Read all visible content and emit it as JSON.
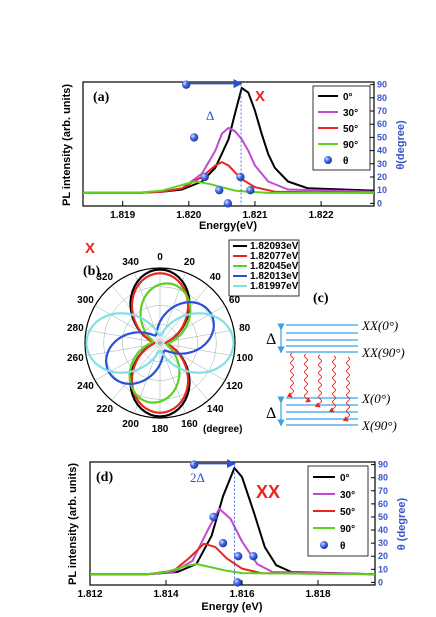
{
  "panel_a": {
    "letter": "(a)",
    "label": "X",
    "label_color": "#e8261d",
    "ylabel": "PL intensity (arb. units)",
    "xlabel": "Energy(eV)",
    "y2label": "θ(degree)",
    "delta": "Δ",
    "legend": [
      "0°",
      "30°",
      "50°",
      "90°",
      "θ"
    ],
    "xticks": [
      "1.819",
      "1.820",
      "1.821",
      "1.822"
    ],
    "y2ticks": [
      "0",
      "10",
      "20",
      "30",
      "40",
      "50",
      "60",
      "70",
      "80",
      "90"
    ]
  },
  "panel_b": {
    "letter": "(b)",
    "label": "X",
    "label_color": "#e8261d",
    "unit": "(degree)",
    "angle_labels": [
      "0",
      "20",
      "40",
      "60",
      "80",
      "100",
      "120",
      "140",
      "160",
      "180",
      "200",
      "220",
      "240",
      "260",
      "280",
      "300",
      "320",
      "340"
    ],
    "legend": [
      "1.82093eV",
      "1.82077eV",
      "1.82045eV",
      "1.82013eV",
      "1.81997eV"
    ]
  },
  "panel_c": {
    "letter": "(c)",
    "delta_top": "Δ",
    "delta_bottom": "Δ",
    "levels": [
      "XX(0°)",
      "XX(90°)",
      "X(0°)",
      "X(90°)"
    ]
  },
  "panel_d": {
    "letter": "(d)",
    "label": "XX",
    "label_color": "#e8261d",
    "ylabel": "PL intensity (arb. units)",
    "xlabel": "Energy (eV)",
    "y2label": "θ (degree)",
    "delta": "2Δ",
    "legend": [
      "0°",
      "30°",
      "50°",
      "90°",
      "θ"
    ],
    "xticks": [
      "1.812",
      "1.814",
      "1.816",
      "1.818"
    ],
    "y2ticks": [
      "0",
      "10",
      "20",
      "30",
      "40",
      "50",
      "60",
      "70",
      "80",
      "90"
    ]
  },
  "colors": {
    "0deg": "#000000",
    "30deg": "#c04ad0",
    "50deg": "#e8261d",
    "90deg": "#5cd122",
    "theta": "#2a4fd8",
    "axis_right": "#3a55c8",
    "polar": [
      "#000000",
      "#e8261d",
      "#5cd122",
      "#2a4fd8",
      "#7fe0e8"
    ],
    "transition": "#e8261d"
  },
  "chart_data": [
    {
      "type": "line",
      "panel": "a",
      "xlabel": "Energy(eV)",
      "ylabel": "PL intensity (arb. units)",
      "y2label": "θ(degree)",
      "xlim": [
        1.8184,
        1.8228
      ],
      "y2lim": [
        -2,
        92
      ],
      "series": [
        {
          "name": "0°",
          "x": [
            1.8184,
            1.8192,
            1.8196,
            1.8199,
            1.8202,
            1.8204,
            1.8206,
            1.8207,
            1.8208,
            1.8209,
            1.821,
            1.8211,
            1.8212,
            1.8213,
            1.8215,
            1.8218,
            1.8228
          ],
          "y": [
            0.08,
            0.08,
            0.09,
            0.11,
            0.18,
            0.3,
            0.55,
            0.78,
            1.0,
            0.96,
            0.8,
            0.6,
            0.42,
            0.3,
            0.18,
            0.12,
            0.1
          ]
        },
        {
          "name": "30°",
          "x": [
            1.8184,
            1.8192,
            1.8196,
            1.8199,
            1.8202,
            1.8204,
            1.8205,
            1.8206,
            1.8207,
            1.8208,
            1.8209,
            1.821,
            1.8212,
            1.8215,
            1.8228
          ],
          "y": [
            0.08,
            0.08,
            0.09,
            0.12,
            0.25,
            0.45,
            0.6,
            0.65,
            0.62,
            0.55,
            0.45,
            0.32,
            0.18,
            0.11,
            0.09
          ]
        },
        {
          "name": "50°",
          "x": [
            1.8184,
            1.8192,
            1.8196,
            1.8199,
            1.8202,
            1.8204,
            1.8205,
            1.8206,
            1.8207,
            1.8208,
            1.821,
            1.8213,
            1.8228
          ],
          "y": [
            0.08,
            0.08,
            0.09,
            0.12,
            0.22,
            0.32,
            0.35,
            0.32,
            0.26,
            0.2,
            0.13,
            0.09,
            0.08
          ]
        },
        {
          "name": "90°",
          "x": [
            1.8184,
            1.8192,
            1.8196,
            1.8199,
            1.8201,
            1.8203,
            1.8205,
            1.8207,
            1.8209,
            1.8212,
            1.8228
          ],
          "y": [
            0.08,
            0.08,
            0.1,
            0.15,
            0.18,
            0.16,
            0.13,
            0.1,
            0.09,
            0.08,
            0.08
          ]
        }
      ],
      "theta_points": {
        "x": [
          1.81996,
          1.82008,
          1.82024,
          1.82046,
          1.82059,
          1.82078,
          1.82093
        ],
        "y": [
          90,
          50,
          20,
          10,
          0,
          20,
          10
        ]
      },
      "delta_arrow": {
        "from": 1.81996,
        "to": 1.82079
      }
    },
    {
      "type": "polar",
      "panel": "b",
      "angle_unit": "degree",
      "series": [
        {
          "name": "1.82093eV",
          "max_angle": 0,
          "amp": 1.0,
          "min": 0.08
        },
        {
          "name": "1.82077eV",
          "max_angle": 0,
          "amp": 0.95,
          "min": 0.08
        },
        {
          "name": "1.82045eV",
          "max_angle": 10,
          "amp": 0.82,
          "min": 0.1
        },
        {
          "name": "1.82013eV",
          "max_angle": 60,
          "amp": 0.8,
          "min": 0.12
        },
        {
          "name": "1.81997eV",
          "max_angle": 90,
          "amp": 1.0,
          "min": 0.1
        }
      ]
    },
    {
      "type": "line",
      "panel": "d",
      "xlabel": "Energy (eV)",
      "ylabel": "PL intensity (arb. units)",
      "y2label": "θ (degree)",
      "xlim": [
        1.812,
        1.8195
      ],
      "y2lim": [
        -2,
        92
      ],
      "series": [
        {
          "name": "0°",
          "x": [
            1.812,
            1.8135,
            1.8143,
            1.8148,
            1.8152,
            1.8155,
            1.8158,
            1.816,
            1.8163,
            1.8166,
            1.8169,
            1.8173,
            1.8195
          ],
          "y": [
            0.06,
            0.06,
            0.08,
            0.15,
            0.4,
            0.75,
            1.0,
            0.92,
            0.62,
            0.3,
            0.14,
            0.08,
            0.06
          ]
        },
        {
          "name": "30°",
          "x": [
            1.812,
            1.8135,
            1.8142,
            1.8147,
            1.8151,
            1.8154,
            1.8157,
            1.816,
            1.8164,
            1.8168,
            1.8195
          ],
          "y": [
            0.06,
            0.06,
            0.08,
            0.18,
            0.45,
            0.64,
            0.55,
            0.35,
            0.15,
            0.08,
            0.06
          ]
        },
        {
          "name": "50°",
          "x": [
            1.812,
            1.8135,
            1.8142,
            1.8146,
            1.815,
            1.8153,
            1.8156,
            1.816,
            1.8165,
            1.8195
          ],
          "y": [
            0.06,
            0.06,
            0.09,
            0.2,
            0.33,
            0.3,
            0.2,
            0.11,
            0.07,
            0.06
          ]
        },
        {
          "name": "90°",
          "x": [
            1.812,
            1.8135,
            1.814,
            1.8145,
            1.8148,
            1.8152,
            1.8156,
            1.816,
            1.8195
          ],
          "y": [
            0.06,
            0.06,
            0.08,
            0.13,
            0.15,
            0.12,
            0.09,
            0.07,
            0.06
          ]
        }
      ],
      "theta_points": {
        "x": [
          1.81474,
          1.81525,
          1.8155,
          1.8159,
          1.8163,
          1.81588
        ],
        "y": [
          90,
          50,
          30,
          20,
          20,
          0
        ]
      },
      "delta_arrow": {
        "from": 1.81474,
        "to": 1.8158
      }
    }
  ]
}
